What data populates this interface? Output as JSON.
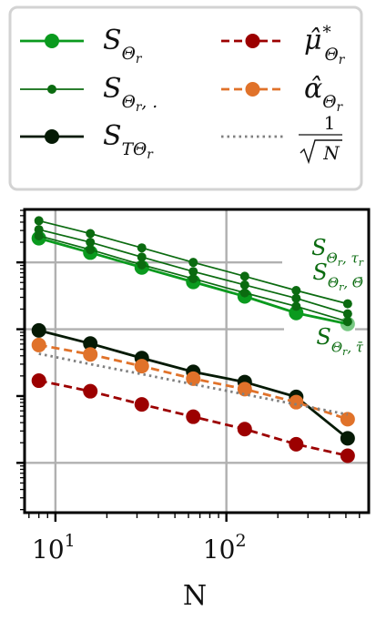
{
  "chart_data": {
    "type": "line",
    "xlabel": "N",
    "x_scale": "log",
    "y_scale": "log",
    "xlim": [
      6.6,
      680
    ],
    "ylim": [
      1.8e-05,
      0.62
    ],
    "grid": true,
    "legend_placement": "top",
    "x_tick_labels": [
      {
        "value": 10,
        "base": "10",
        "exp": "1"
      },
      {
        "value": 100,
        "base": "10",
        "exp": "2"
      }
    ],
    "y_major_ticks": [
      0.0001,
      0.01,
      0.1
    ],
    "x": [
      8,
      16,
      32,
      64,
      128,
      256,
      512
    ],
    "series": [
      {
        "key": "s_theta_r",
        "color": "#0a9a1e",
        "dash": "solid",
        "marker": "large",
        "opacity_last": 0.55,
        "values": [
          0.23,
          0.14,
          0.084,
          0.051,
          0.031,
          0.0175,
          0.012
        ]
      },
      {
        "key": "s_theta_dot_tau",
        "color": "#0b6b10",
        "dash": "solid",
        "marker": "small",
        "values": [
          0.42,
          0.27,
          0.165,
          0.1,
          0.062,
          0.038,
          0.024
        ]
      },
      {
        "key": "s_theta_dot_theta",
        "color": "#0b6b10",
        "dash": "solid",
        "marker": "small",
        "values": [
          0.31,
          0.2,
          0.12,
          0.073,
          0.046,
          0.029,
          0.017
        ]
      },
      {
        "key": "s_theta_dot_tau_bar",
        "color": "#0b6b10",
        "dash": "solid",
        "marker": "small",
        "values": [
          0.25,
          0.155,
          0.092,
          0.057,
          0.035,
          0.022,
          0.013
        ]
      },
      {
        "key": "s_t_theta_r",
        "color": "#051a05",
        "dash": "solid",
        "marker": "large",
        "values": [
          0.0096,
          0.0061,
          0.0037,
          0.0023,
          0.00162,
          0.00097,
          0.000233
        ]
      },
      {
        "key": "alpha_hat",
        "color": "#e0722a",
        "dash": "dashed",
        "marker": "large",
        "values": [
          0.0058,
          0.0042,
          0.0028,
          0.00182,
          0.00127,
          0.00081,
          0.00045
        ]
      },
      {
        "key": "mu_hat_star",
        "color": "#9c0000",
        "dash": "dashed",
        "marker": "large",
        "values": [
          0.0017,
          0.00118,
          0.00075,
          0.00049,
          0.00032,
          0.00019,
          0.000128
        ]
      },
      {
        "key": "inv_sqrt_n",
        "color": "#808080",
        "dash": "dotted",
        "marker": "none",
        "values": [
          0.0043,
          0.003,
          0.00213,
          0.0015,
          0.00106,
          0.00075,
          0.00053
        ]
      }
    ],
    "legend": [
      {
        "series": "s_theta_r",
        "base": "S",
        "sub": "Θ",
        "subsub": "r",
        "tail": ""
      },
      {
        "series": "mu_hat_star",
        "base": "μ̂",
        "sup": "*",
        "sub": "Θ",
        "subsub": "r"
      },
      {
        "series": "s_theta_dot_tau",
        "base": "S",
        "sub": "Θ",
        "subsub": "r",
        "tail": ", ."
      },
      {
        "series": "alpha_hat",
        "base": "α̂",
        "sub": "Θ",
        "subsub": "r"
      },
      {
        "series": "s_t_theta_r",
        "base": "S",
        "sub": "TΘ",
        "subsub": "r",
        "tail": ""
      },
      {
        "series": "inv_sqrt_n",
        "num": "1",
        "den": "N"
      }
    ],
    "annotations": [
      {
        "series": "s_theta_dot_tau",
        "base": "S",
        "sub": "Θ",
        "subsub": "r",
        "tail": ", τ",
        "tailsub": "r"
      },
      {
        "series": "s_theta_dot_theta",
        "base": "S",
        "sub": "Θ",
        "subsub": "r",
        "tail": ", Θ̄"
      },
      {
        "series": "s_theta_dot_tau_bar",
        "base": "S",
        "sub": "Θ",
        "subsub": "r",
        "tail": ", τ̄"
      }
    ]
  }
}
